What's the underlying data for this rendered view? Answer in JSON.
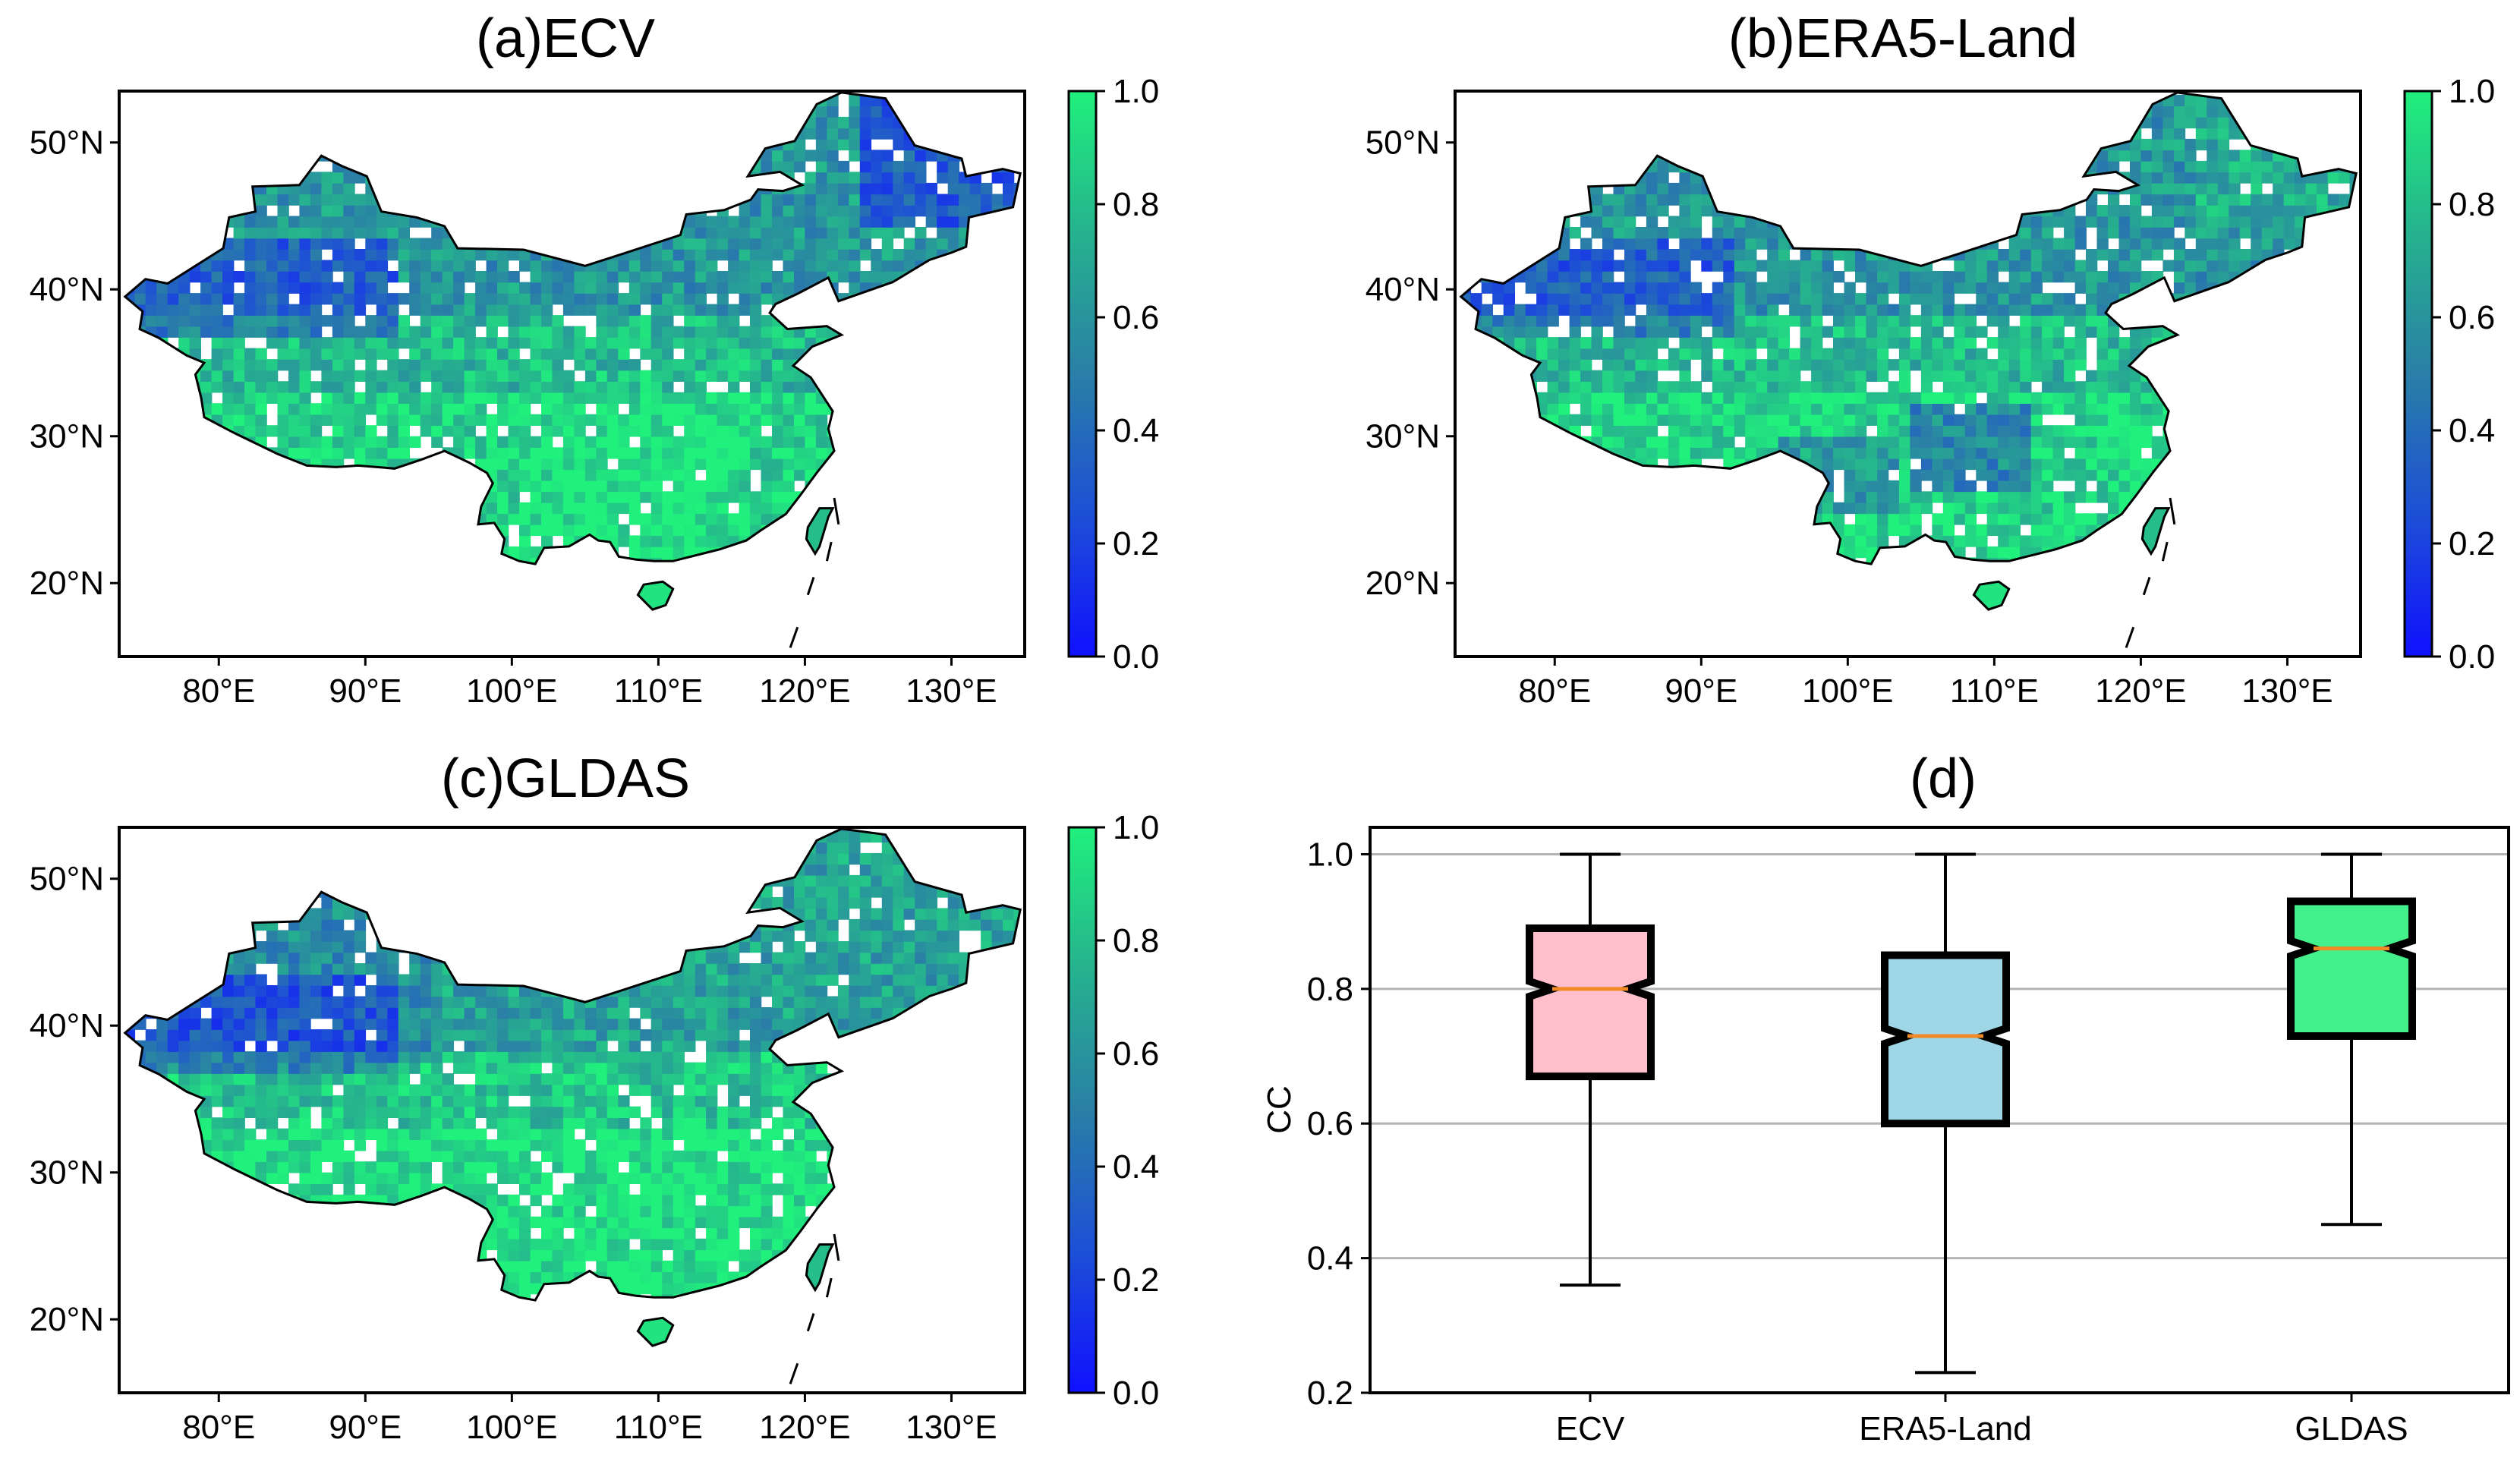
{
  "colors": {
    "high": "#22f08a",
    "mid": "#2b8f92",
    "low": "#1b24e6",
    "box_ecv": "#ffc0cb",
    "box_era5": "#9ed6e6",
    "box_gldas": "#44f08c",
    "median": "#f08a26",
    "grid": "#b3b3b3"
  },
  "maps": [
    {
      "id": "a",
      "title": "(a)ECV",
      "bias": "ecv"
    },
    {
      "id": "b",
      "title": "(b)ERA5-Land",
      "bias": "era5"
    },
    {
      "id": "c",
      "title": "(c)GLDAS",
      "bias": "gldas"
    }
  ],
  "map_axes": {
    "lat_ticks": [
      "50°N",
      "40°N",
      "30°N",
      "20°N"
    ],
    "lon_ticks": [
      "80°E",
      "90°E",
      "100°E",
      "110°E",
      "120°E",
      "130°E"
    ]
  },
  "colorbar": {
    "ticks": [
      "1.0",
      "0.8",
      "0.6",
      "0.4",
      "0.2",
      "0.0"
    ]
  },
  "chart_data": {
    "type": "box",
    "title": "(d)",
    "ylabel": "CC",
    "ylim": [
      0.2,
      1.04
    ],
    "yticks": [
      "1.0",
      "0.8",
      "0.6",
      "0.4",
      "0.2"
    ],
    "grid": true,
    "categories": [
      "ECV",
      "ERA5-Land",
      "GLDAS"
    ],
    "series": [
      {
        "name": "ECV",
        "whisker_low": 0.36,
        "q1": 0.67,
        "median": 0.8,
        "q3": 0.89,
        "whisker_high": 1.0
      },
      {
        "name": "ERA5-Land",
        "whisker_low": 0.23,
        "q1": 0.6,
        "median": 0.73,
        "q3": 0.85,
        "whisker_high": 1.0
      },
      {
        "name": "GLDAS",
        "whisker_low": 0.45,
        "q1": 0.73,
        "median": 0.86,
        "q3": 0.93,
        "whisker_high": 1.0
      }
    ]
  }
}
